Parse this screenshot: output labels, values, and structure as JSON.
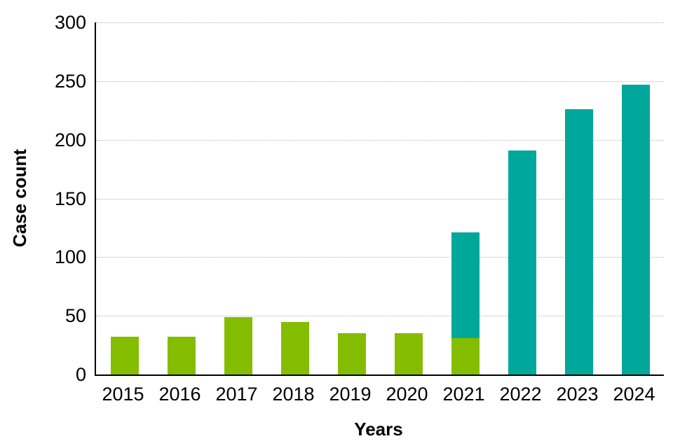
{
  "chart_data": {
    "type": "bar",
    "stacked": true,
    "title": "",
    "xlabel": "Years",
    "ylabel": "Case count",
    "categories": [
      "2015",
      "2016",
      "2017",
      "2018",
      "2019",
      "2020",
      "2021",
      "2022",
      "2023",
      "2024"
    ],
    "series": [
      {
        "name": "green",
        "color": "#84bd00",
        "values": [
          32,
          32,
          49,
          45,
          35,
          35,
          31,
          0,
          0,
          0
        ]
      },
      {
        "name": "teal",
        "color": "#00a79b",
        "values": [
          0,
          0,
          0,
          0,
          0,
          0,
          90,
          191,
          226,
          247
        ]
      }
    ],
    "ylim": [
      0,
      300
    ],
    "ytick_interval": 50,
    "yticks": [
      0,
      50,
      100,
      150,
      200,
      250,
      300
    ],
    "grid": true,
    "legend_position": "none",
    "axis_color": "#000000",
    "gridline_color": "#b3b3b3",
    "background_color": "#ffffff"
  }
}
